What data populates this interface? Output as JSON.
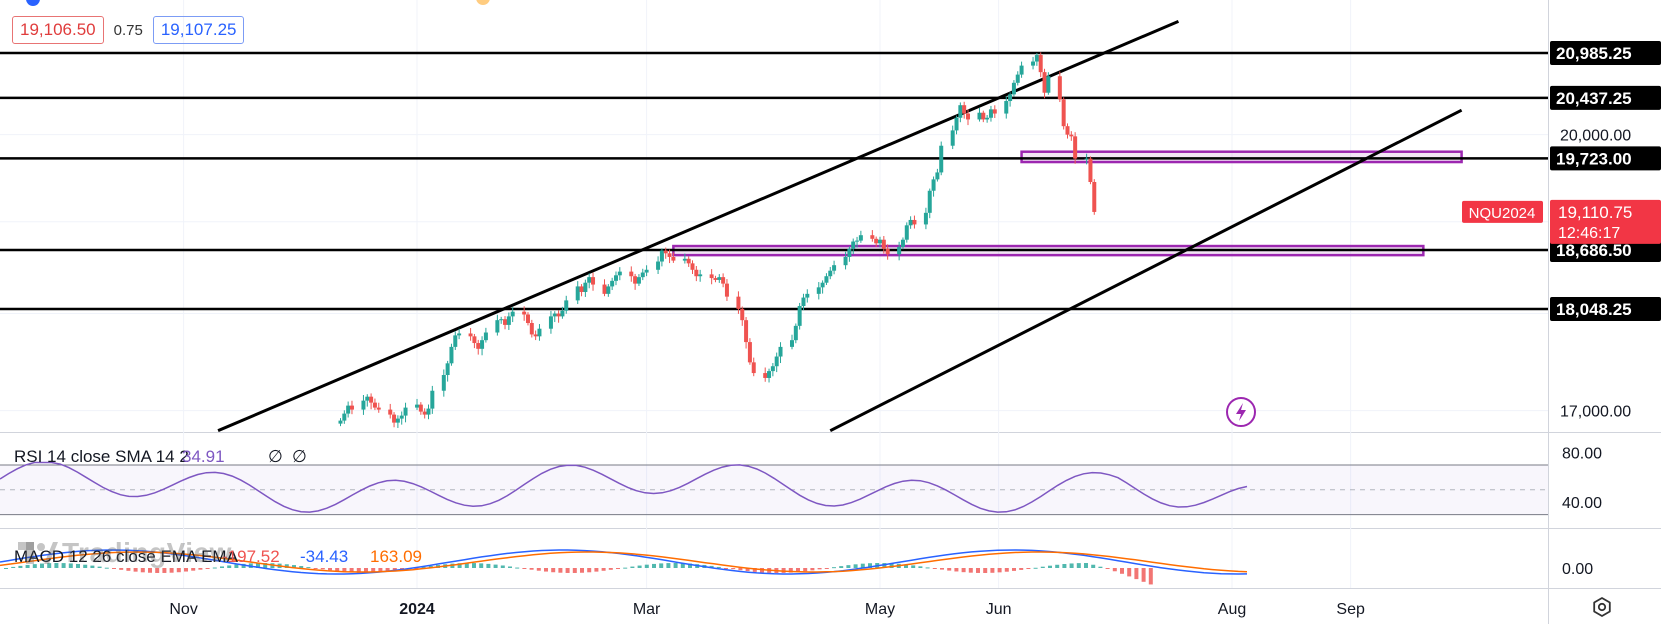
{
  "quote": {
    "bid": "19,106.50",
    "spread": "0.75",
    "ask": "19,107.25"
  },
  "watermark": "TradingView",
  "icons": {
    "settings": "gear-icon",
    "lightning": "lightning-icon"
  },
  "colors": {
    "up": "#26a69a",
    "down": "#ef5350",
    "level_line": "#000000",
    "zone": "#9c27b0",
    "rsi": "#7e57c2",
    "macd": "#2962ff",
    "signal": "#ff6d00",
    "price_tag": "#f23645"
  },
  "price_axis": {
    "labels": [
      "20,000.00",
      "17,000.00"
    ]
  },
  "levels": [
    {
      "price": 20985.25,
      "label": "20,985.25"
    },
    {
      "price": 20437.25,
      "label": "20,437.25"
    },
    {
      "price": 19723.0,
      "label": "19,723.00"
    },
    {
      "price": 18686.5,
      "label": "18,686.50"
    },
    {
      "price": 18048.25,
      "label": "18,048.25"
    }
  ],
  "last_price": {
    "symbol": "NQU2024",
    "price": "19,110.75",
    "countdown": "12:46:17"
  },
  "time_axis": [
    "Nov",
    "2024",
    "Mar",
    "May",
    "Jun",
    "Aug",
    "Sep"
  ],
  "rsi": {
    "label": "RSI 14 close SMA 14 2",
    "value": "34.91",
    "extra1": "∅",
    "extra2": "∅",
    "axis_labels": [
      "80.00",
      "40.00"
    ]
  },
  "macd": {
    "label": "MACD 12 26 close EMA EMA",
    "hist": "-197.52",
    "macd": "-34.43",
    "signal": "163.09",
    "axis_labels": [
      "0.00"
    ]
  },
  "chart_data": {
    "type": "candlestick",
    "symbol": "NQU2024",
    "y_scale": "log",
    "y_range": [
      16650,
      21200
    ],
    "x_ticks": [
      "Nov",
      "2024",
      "Mar",
      "May",
      "Jun",
      "Aug",
      "Sep"
    ],
    "horizontal_levels": [
      20985.25,
      20437.25,
      19723.0,
      18686.5,
      18048.25
    ],
    "zones": [
      {
        "from_date": "2024-06-07",
        "to_date": "2024-09-30",
        "low": 19680,
        "high": 19800
      },
      {
        "from_date": "2024-03-08",
        "to_date": "2024-09-20",
        "low": 18630,
        "high": 18730
      }
    ],
    "channel_lines": [
      {
        "from": [
          "2023-11-10",
          16800
        ],
        "to": [
          "2024-07-18",
          21380
        ]
      },
      {
        "from": [
          "2024-04-18",
          16800
        ],
        "to": [
          "2024-09-30",
          20290
        ]
      }
    ],
    "candles_close": [
      16900,
      16970,
      17050,
      17010,
      17100,
      17140,
      17080,
      17030,
      17010,
      16960,
      16880,
      16920,
      16950,
      17030,
      17060,
      16990,
      16960,
      17020,
      17200,
      17360,
      17480,
      17650,
      17770,
      17790,
      17760,
      17690,
      17630,
      17720,
      17800,
      17930,
      17940,
      17880,
      17970,
      18020,
      17990,
      17900,
      17780,
      17760,
      17840,
      17970,
      18000,
      17970,
      18030,
      18140,
      18290,
      18230,
      18330,
      18390,
      18310,
      18210,
      18290,
      18350,
      18410,
      18450,
      18400,
      18320,
      18390,
      18440,
      18470,
      18560,
      18680,
      18650,
      18610,
      18570,
      18590,
      18540,
      18470,
      18400,
      18420,
      18380,
      18360,
      18390,
      18320,
      18180,
      18050,
      17930,
      17700,
      17490,
      17380,
      17330,
      17400,
      17450,
      17550,
      17650,
      17720,
      17870,
      18080,
      18170,
      18210,
      18280,
      18330,
      18400,
      18460,
      18520,
      18610,
      18700,
      18780,
      18790,
      18850,
      18810,
      18760,
      18800,
      18700,
      18640,
      18720,
      18800,
      18960,
      19020,
      18970,
      19100,
      19350,
      19480,
      19560,
      19870,
      20050,
      20200,
      20350,
      20250,
      20180,
      20260,
      20180,
      20200,
      20300,
      20250,
      20400,
      20480,
      20620,
      20720,
      20830,
      20880,
      20960,
      20750,
      20500,
      20700,
      20420,
      20100,
      20000,
      19980,
      19720,
      19720,
      19450,
      19110
    ]
  }
}
